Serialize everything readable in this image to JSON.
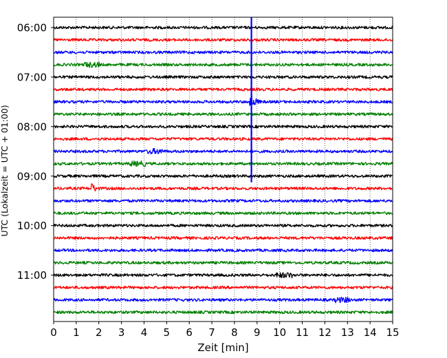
{
  "chart_data": {
    "type": "line",
    "subtype": "helicorder",
    "xlabel": "Zeit  [min]",
    "ylabel": "UTC (Lokalzeit = UTC + 01:00)",
    "xlim": [
      0,
      15
    ],
    "x_ticks": [
      0,
      1,
      2,
      3,
      4,
      5,
      6,
      7,
      8,
      9,
      10,
      11,
      12,
      13,
      14,
      15
    ],
    "y_tick_labels": [
      "06:00",
      "07:00",
      "08:00",
      "09:00",
      "10:00",
      "11:00"
    ],
    "x_grid": "dotted",
    "trace_start": "06:00",
    "trace_interval_min": 15,
    "trace_count": 24,
    "trace_colors": [
      "#000000",
      "#ff0000",
      "#0000ff",
      "#008000"
    ],
    "events": [
      {
        "trace": 2,
        "minute": 8.75,
        "kind": "large-earthquake-spike"
      },
      {
        "trace": 3,
        "minute": 8.75,
        "kind": "large-earthquake-spike"
      },
      {
        "trace": 4,
        "minute": 8.75,
        "kind": "large-earthquake-spike"
      },
      {
        "trace": 5,
        "minute": 8.75,
        "kind": "large-earthquake-spike"
      },
      {
        "trace": 6,
        "minute": 8.75,
        "kind": "large-earthquake-burst"
      },
      {
        "trace": 7,
        "minute": 8.75,
        "kind": "large-earthquake-spike"
      },
      {
        "trace": 8,
        "minute": 8.75,
        "kind": "large-earthquake-spike"
      },
      {
        "trace": 9,
        "minute": 8.75,
        "kind": "large-earthquake-spike"
      },
      {
        "trace": 10,
        "minute": 8.75,
        "kind": "large-earthquake-spike"
      },
      {
        "trace": 11,
        "minute": 8.75,
        "kind": "large-earthquake-spike"
      },
      {
        "trace": 12,
        "minute": 8.75,
        "kind": "large-earthquake-spike"
      },
      {
        "trace": 13,
        "minute": 1.7,
        "kind": "local-event"
      },
      {
        "trace": 3,
        "minute": 1.7,
        "kind": "small-burst"
      },
      {
        "trace": 11,
        "minute": 3.7,
        "kind": "small-burst"
      },
      {
        "trace": 10,
        "minute": 4.5,
        "kind": "small-burst"
      },
      {
        "trace": 20,
        "minute": 10.2,
        "kind": "small-burst"
      },
      {
        "trace": 22,
        "minute": 12.8,
        "kind": "small-burst"
      }
    ]
  }
}
